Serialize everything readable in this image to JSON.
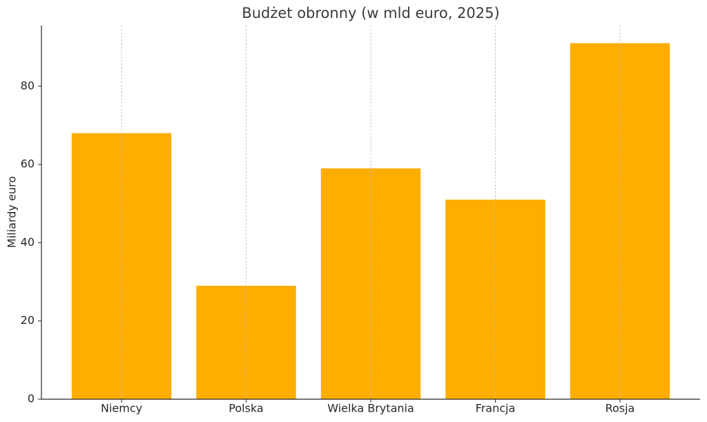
{
  "chart_data": {
    "type": "bar",
    "title": "Budżet obronny (w mld euro, 2025)",
    "y_label": "Miliardy euro",
    "categories": [
      "Niemcy",
      "Polska",
      "Wielka Brytania",
      "Francja",
      "Rosja"
    ],
    "values": [
      68,
      29,
      59,
      51,
      91
    ],
    "color": "#ffad00",
    "ylim": [
      0,
      95.5
    ],
    "yticks": [
      0,
      20,
      40,
      60,
      80
    ],
    "grid": "x"
  }
}
